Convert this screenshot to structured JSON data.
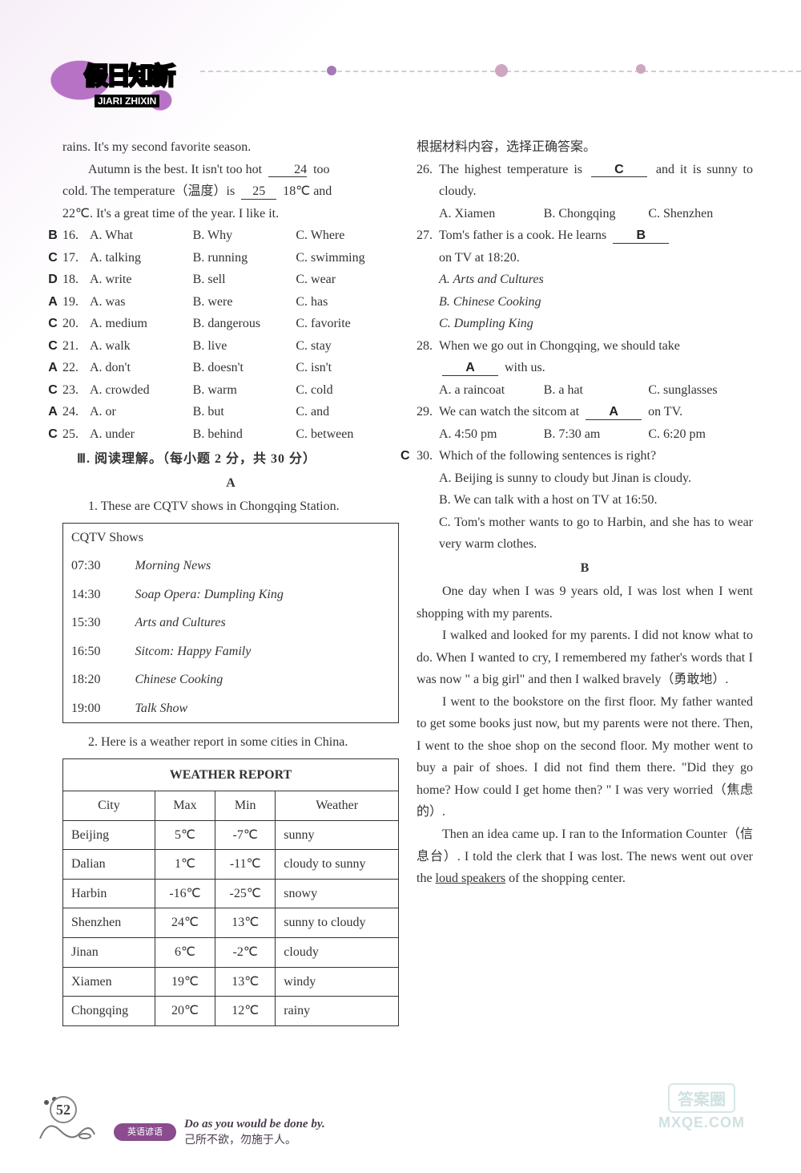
{
  "header": {
    "logo_main": "假日知新",
    "logo_pinyin": "JIARI ZHIXIN"
  },
  "leftCol": {
    "passage_top": "rains. It's my second favorite season.",
    "passage_lines": [
      {
        "pre": "Autumn is the best. It isn't too hot ",
        "blank": "24",
        "post": " too"
      },
      {
        "pre": "cold. The temperature（温度）is ",
        "blank": "25",
        "post": " 18℃ and"
      }
    ],
    "passage_tail": "22℃. It's a great time of the year. I like it.",
    "mcq": [
      {
        "ans": "B",
        "n": "16.",
        "a": "A. What",
        "b": "B. Why",
        "c": "C. Where"
      },
      {
        "ans": "C",
        "n": "17.",
        "a": "A. talking",
        "b": "B. running",
        "c": "C. swimming"
      },
      {
        "ans": "D",
        "n": "18.",
        "a": "A. write",
        "b": "B. sell",
        "c": "C. wear"
      },
      {
        "ans": "A",
        "n": "19.",
        "a": "A. was",
        "b": "B. were",
        "c": "C. has"
      },
      {
        "ans": "C",
        "n": "20.",
        "a": "A. medium",
        "b": "B. dangerous",
        "c": "C. favorite"
      },
      {
        "ans": "C",
        "n": "21.",
        "a": "A. walk",
        "b": "B. live",
        "c": "C. stay"
      },
      {
        "ans": "A",
        "n": "22.",
        "a": "A. don't",
        "b": "B. doesn't",
        "c": "C. isn't"
      },
      {
        "ans": "C",
        "n": "23.",
        "a": "A. crowded",
        "b": "B. warm",
        "c": "C. cold"
      },
      {
        "ans": "A",
        "n": "24.",
        "a": "A. or",
        "b": "B. but",
        "c": "C. and"
      },
      {
        "ans": "C",
        "n": "25.",
        "a": "A. under",
        "b": "B. behind",
        "c": "C. between"
      }
    ],
    "section3": "Ⅲ. 阅读理解。（每小题 2 分，共 30 分）",
    "labelA": "A",
    "part1_intro": "1.  These are CQTV shows in Chongqing Station.",
    "tv": {
      "title": "CQTV Shows",
      "rows": [
        {
          "t": "07:30",
          "p": "Morning News"
        },
        {
          "t": "14:30",
          "p": "Soap Opera: Dumpling King"
        },
        {
          "t": "15:30",
          "p": "Arts and Cultures"
        },
        {
          "t": "16:50",
          "p": "Sitcom: Happy Family"
        },
        {
          "t": "18:20",
          "p": "Chinese Cooking"
        },
        {
          "t": "19:00",
          "p": "Talk Show"
        }
      ]
    },
    "part2_intro": "2. Here is a weather report in some cities in China.",
    "weather": {
      "title": "WEATHER REPORT",
      "head": {
        "c": "City",
        "mx": "Max",
        "mn": "Min",
        "w": "Weather"
      },
      "rows": [
        {
          "c": "Beijing",
          "mx": "5℃",
          "mn": "-7℃",
          "w": "sunny"
        },
        {
          "c": "Dalian",
          "mx": "1℃",
          "mn": "-11℃",
          "w": "cloudy to sunny"
        },
        {
          "c": "Harbin",
          "mx": "-16℃",
          "mn": "-25℃",
          "w": "snowy"
        },
        {
          "c": "Shenzhen",
          "mx": "24℃",
          "mn": "13℃",
          "w": "sunny to cloudy"
        },
        {
          "c": "Jinan",
          "mx": "6℃",
          "mn": "-2℃",
          "w": "cloudy"
        },
        {
          "c": "Xiamen",
          "mx": "19℃",
          "mn": "13℃",
          "w": "windy"
        },
        {
          "c": "Chongqing",
          "mx": "20℃",
          "mn": "12℃",
          "w": "rainy"
        }
      ]
    }
  },
  "rightCol": {
    "instr": "根据材料内容，选择正确答案。",
    "q26": {
      "num": "26.",
      "pre": "The highest temperature is ",
      "ans": "C",
      "post": " and it is sunny to cloudy.",
      "opts": {
        "a": "A. Xiamen",
        "b": "B. Chongqing",
        "c": "C. Shenzhen"
      }
    },
    "q27": {
      "num": "27.",
      "pre": "Tom's father is a cook. He learns ",
      "ans": "B",
      "post": "on TV at 18:20.",
      "opts": [
        "A. Arts and Cultures",
        "B. Chinese Cooking",
        "C. Dumpling King"
      ]
    },
    "q28": {
      "num": "28.",
      "pre": "When we go out in Chongqing, we should take ",
      "ans": "A",
      "post": " with us.",
      "opts": {
        "a": "A. a raincoat",
        "b": "B. a hat",
        "c": "C. sunglasses"
      }
    },
    "q29": {
      "num": "29.",
      "pre": "We can watch the sitcom at ",
      "ans": "A",
      "post": " on TV.",
      "opts": {
        "a": "A. 4:50 pm",
        "b": "B. 7:30 am",
        "c": "C. 6:20 pm"
      }
    },
    "q30": {
      "hand": "C",
      "num": "30.",
      "stem": "Which of the following sentences is right?",
      "opts": [
        "A. Beijing is sunny to cloudy but Jinan is cloudy.",
        "B. We can talk with a host on TV at 16:50.",
        "C. Tom's mother wants to go to Harbin, and she has to wear very warm clothes."
      ]
    },
    "labelB": "B",
    "storyB": [
      "One day when I was 9 years old, I was lost when I went shopping with my parents.",
      "I walked and looked for my parents. I did not know what to do. When I wanted to cry, I remembered my father's words that I was now \" a big girl\" and then I walked bravely（勇敢地）.",
      "I went to the bookstore on the first floor. My father wanted to get some books just now, but my parents were not there. Then, I went to the shoe shop on the second floor. My mother went to buy a pair of shoes. I did not find them there. \"Did they go home? How could I get home then? \" I was very worried（焦虑的）.",
      "Then an idea came up. I ran to the Information Counter（信息台）. I told the clerk that I was lost. The news went out over the "
    ],
    "storyB_tail_underlined": "loud speakers",
    "storyB_tail_after": " of the shopping center."
  },
  "footer": {
    "page": "52",
    "pill": "英语谚语",
    "quote_en": "Do as you would be done by.",
    "quote_zh": "己所不欲，勿施于人。",
    "wm_box": "答案圈",
    "wm_url": "MXQE.COM"
  },
  "style": {
    "accent": "#b872c5",
    "hand_color": "#222222",
    "text_color": "#333333",
    "border_color": "#333333",
    "bg_top": "#f7eef8",
    "font_size_body": 16,
    "table_border_width": 1.5
  }
}
